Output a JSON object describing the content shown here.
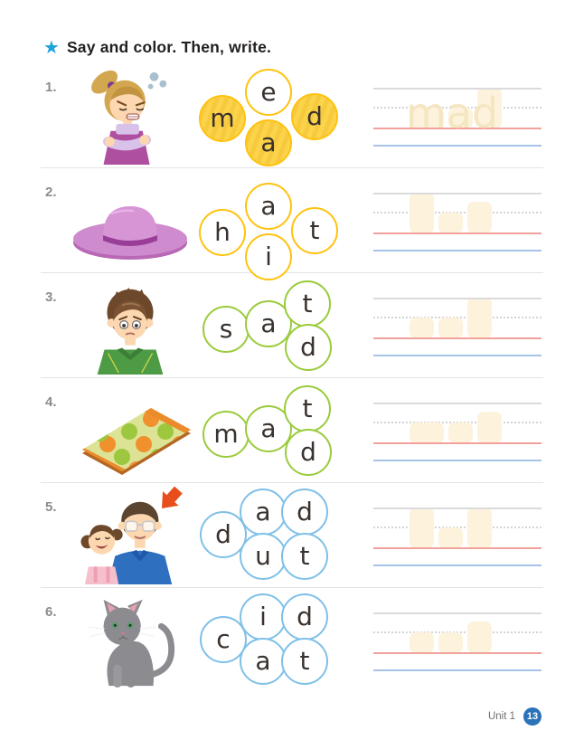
{
  "page": {
    "title": "Say and color. Then, write.",
    "star_icon": "★",
    "footer": {
      "unit_label": "Unit 1",
      "page_number": "13"
    }
  },
  "colors": {
    "accent_star": "#1BA3DC",
    "title": "#231F20",
    "row_number": "#8C8C8C",
    "divider": "#E3E3E3",
    "line_gray": "#DBDBDB",
    "line_dash": "#D4D4D4",
    "line_red": "#F2A19B",
    "line_blue": "#A5C4E6",
    "block": "#FDF3DC",
    "trace_word": "#F5E6C2",
    "letter": "#39322E",
    "badge_bg": "#2B72B8",
    "badge_text": "#FFFFFF",
    "unit_text": "#6E6E6E",
    "yellow": "#FFC20E",
    "yellow_fill": "#FBD44C",
    "green": "#9ACB3C",
    "blue": "#7FC0E8"
  },
  "rows": [
    {
      "number": "1.",
      "word": "mad",
      "image": "mad-girl",
      "layout": "diamond",
      "circle_color": "#FFC20E",
      "circles": [
        {
          "letter": "m",
          "pos": "left",
          "filled": true
        },
        {
          "letter": "d",
          "pos": "right",
          "filled": true
        },
        {
          "letter": "a",
          "pos": "bottom",
          "filled": true
        },
        {
          "letter": "e",
          "pos": "top",
          "filled": false
        }
      ],
      "trace": {
        "show_word": true,
        "letters": [
          {
            "ch": "m",
            "h": "short",
            "wide": true
          },
          {
            "ch": "a",
            "h": "short"
          },
          {
            "ch": "d",
            "h": "tall"
          }
        ]
      }
    },
    {
      "number": "2.",
      "word": "hat",
      "image": "hat",
      "layout": "diamond",
      "circle_color": "#FFC20E",
      "circles": [
        {
          "letter": "h",
          "pos": "left",
          "filled": false
        },
        {
          "letter": "t",
          "pos": "right",
          "filled": false
        },
        {
          "letter": "a",
          "pos": "top",
          "filled": false
        },
        {
          "letter": "i",
          "pos": "bottom",
          "filled": false
        }
      ],
      "trace": {
        "show_word": false,
        "letters": [
          {
            "ch": "h",
            "h": "tall"
          },
          {
            "ch": "a",
            "h": "short"
          },
          {
            "ch": "t",
            "h": "mid"
          }
        ]
      }
    },
    {
      "number": "3.",
      "word": "sad",
      "image": "sad-boy",
      "layout": "stack",
      "circle_color": "#9ACB3C",
      "circles": [
        {
          "letter": "s",
          "pos": "left",
          "filled": false
        },
        {
          "letter": "a",
          "pos": "mid",
          "filled": false
        },
        {
          "letter": "t",
          "pos": "topright",
          "filled": false
        },
        {
          "letter": "d",
          "pos": "botright",
          "filled": false
        }
      ],
      "trace": {
        "show_word": false,
        "letters": [
          {
            "ch": "s",
            "h": "short"
          },
          {
            "ch": "a",
            "h": "short"
          },
          {
            "ch": "d",
            "h": "tall"
          }
        ]
      }
    },
    {
      "number": "4.",
      "word": "mat",
      "image": "mat",
      "layout": "stack",
      "circle_color": "#9ACB3C",
      "circles": [
        {
          "letter": "m",
          "pos": "left",
          "filled": false
        },
        {
          "letter": "a",
          "pos": "mid",
          "filled": false
        },
        {
          "letter": "t",
          "pos": "topright",
          "filled": false
        },
        {
          "letter": "d",
          "pos": "botright",
          "filled": false
        }
      ],
      "trace": {
        "show_word": false,
        "letters": [
          {
            "ch": "m",
            "h": "short",
            "wide": true
          },
          {
            "ch": "a",
            "h": "short"
          },
          {
            "ch": "t",
            "h": "mid"
          }
        ]
      }
    },
    {
      "number": "5.",
      "word": "dad",
      "image": "dad",
      "layout": "grid5",
      "circle_color": "#7FC0E8",
      "circles": [
        {
          "letter": "d",
          "pos": "left",
          "filled": false
        },
        {
          "letter": "a",
          "pos": "top1",
          "filled": false
        },
        {
          "letter": "d",
          "pos": "top2",
          "filled": false
        },
        {
          "letter": "u",
          "pos": "bot1",
          "filled": false
        },
        {
          "letter": "t",
          "pos": "bot2",
          "filled": false
        }
      ],
      "trace": {
        "show_word": false,
        "letters": [
          {
            "ch": "d",
            "h": "tall"
          },
          {
            "ch": "a",
            "h": "short"
          },
          {
            "ch": "d",
            "h": "tall"
          }
        ]
      }
    },
    {
      "number": "6.",
      "word": "cat",
      "image": "cat",
      "layout": "grid5",
      "circle_color": "#7FC0E8",
      "circles": [
        {
          "letter": "c",
          "pos": "left",
          "filled": false
        },
        {
          "letter": "i",
          "pos": "top1",
          "filled": false
        },
        {
          "letter": "d",
          "pos": "top2",
          "filled": false
        },
        {
          "letter": "a",
          "pos": "bot1",
          "filled": false
        },
        {
          "letter": "t",
          "pos": "bot2",
          "filled": false
        }
      ],
      "trace": {
        "show_word": false,
        "letters": [
          {
            "ch": "c",
            "h": "short"
          },
          {
            "ch": "a",
            "h": "short"
          },
          {
            "ch": "t",
            "h": "mid"
          }
        ]
      }
    }
  ]
}
